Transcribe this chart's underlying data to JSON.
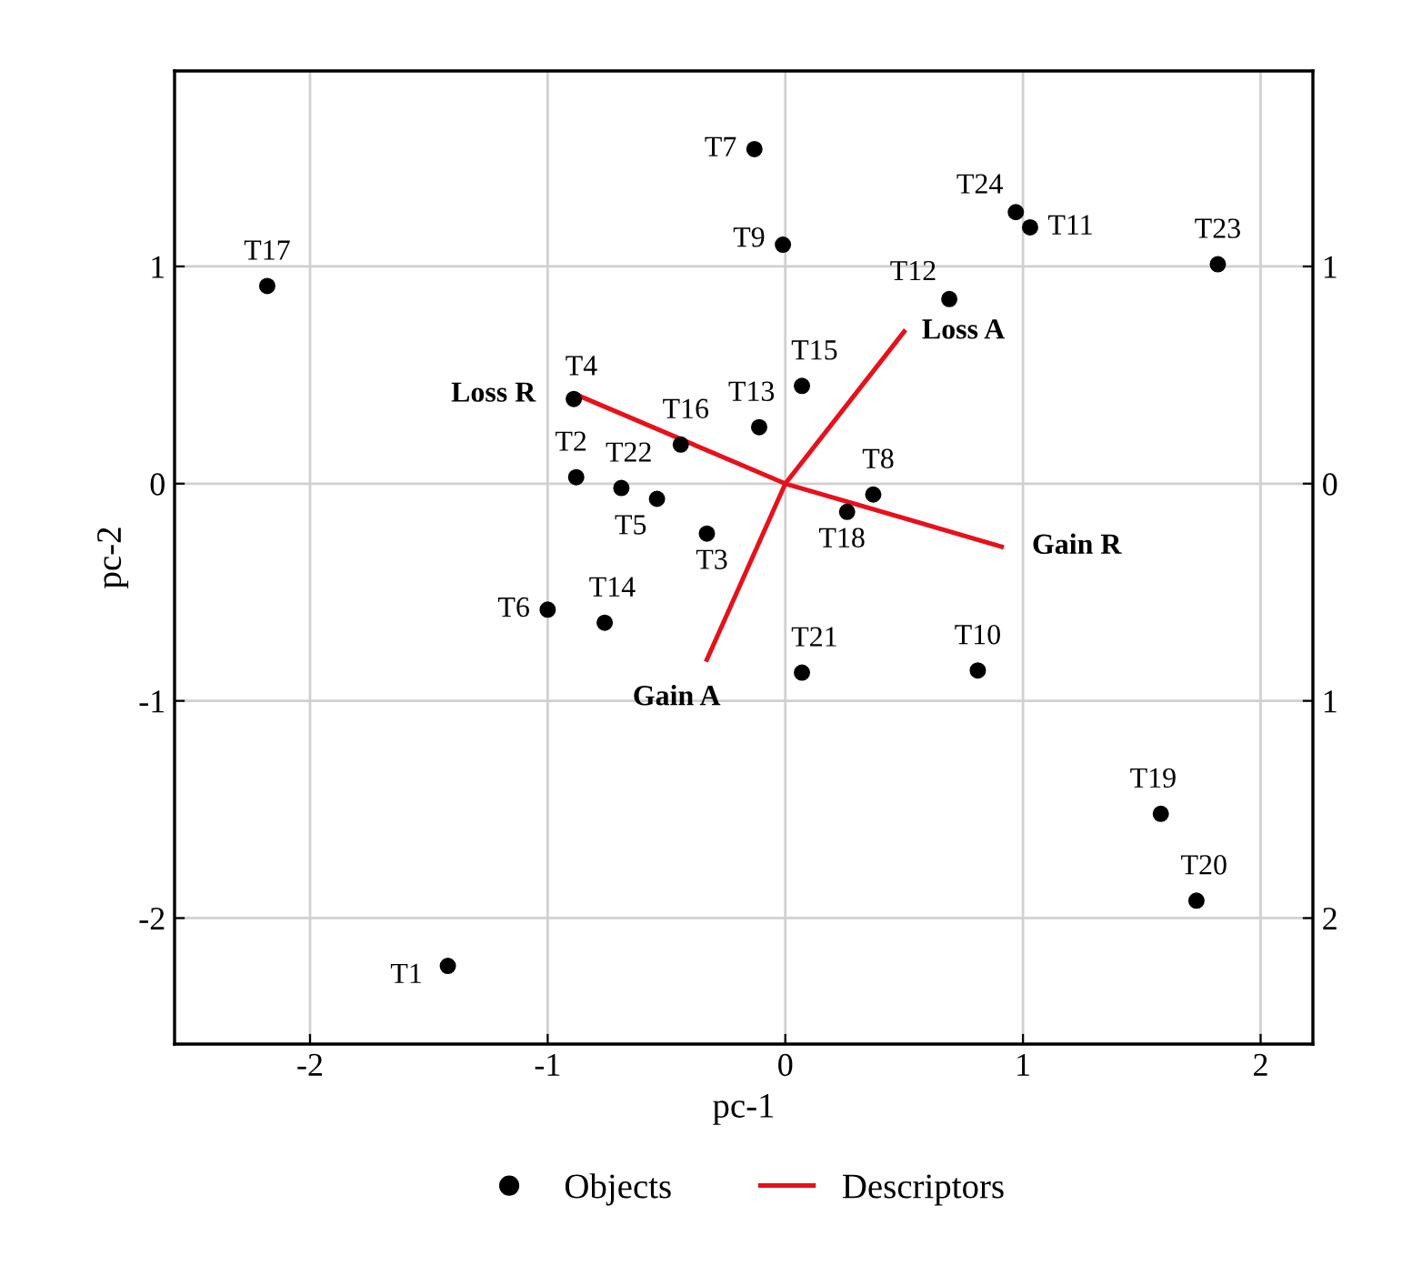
{
  "chart_data": {
    "type": "scatter",
    "xlabel": "pc-1",
    "ylabel": "pc-2",
    "xlim": [
      -2.57,
      2.22
    ],
    "ylim": [
      -2.58,
      1.9
    ],
    "xticks": [
      -2,
      -1,
      0,
      1,
      2
    ],
    "yticks": [
      -2,
      -1,
      0,
      1
    ],
    "y2lim": [
      -2.58,
      1.9
    ],
    "y2ticks": [
      {
        "value": -2,
        "label": "2"
      },
      {
        "value": -1,
        "label": "1"
      },
      0,
      1
    ],
    "grid": true,
    "legend": "bottom",
    "marker": "circle",
    "series": [
      {
        "name": "Objects",
        "color": "#000000",
        "x": [
          -1.42,
          -0.88,
          -0.33,
          -0.89,
          -0.54,
          -1.0,
          -0.13,
          0.37,
          -0.01,
          0.81,
          1.03,
          0.69,
          -0.11,
          -0.76,
          0.07,
          -0.44,
          -2.18,
          0.26,
          1.58,
          1.73,
          0.07,
          -0.69,
          1.82,
          0.97
        ],
        "values": [
          -2.22,
          0.03,
          -0.23,
          0.39,
          -0.07,
          -0.58,
          1.54,
          -0.05,
          1.1,
          -0.86,
          1.18,
          0.85,
          0.26,
          -0.64,
          0.45,
          0.18,
          0.91,
          -0.13,
          -1.52,
          -1.92,
          -0.87,
          -0.02,
          1.01,
          1.25
        ]
      },
      {
        "name": "Descriptors",
        "type": "line",
        "marker": "none",
        "color": "#e8101a",
        "x": [
          0,
          0.5,
          null,
          0,
          -0.88,
          null,
          0,
          0.91,
          null,
          0,
          -0.33
        ],
        "values": [
          0,
          0.7,
          null,
          0,
          0.41,
          null,
          0,
          -0.29,
          null,
          0,
          -0.81
        ]
      }
    ],
    "annotations": [
      {
        "text": "T1",
        "x": -1.42,
        "y": -2.22
      },
      {
        "text": "T2",
        "x": -0.88,
        "y": 0.03
      },
      {
        "text": "T3",
        "x": -0.33,
        "y": -0.23
      },
      {
        "text": "T4",
        "x": -0.89,
        "y": 0.39
      },
      {
        "text": "T5",
        "x": -0.54,
        "y": -0.07
      },
      {
        "text": "T6",
        "x": -1.0,
        "y": -0.58
      },
      {
        "text": "T7",
        "x": -0.13,
        "y": 1.54
      },
      {
        "text": "T8",
        "x": 0.37,
        "y": -0.05
      },
      {
        "text": "T9",
        "x": -0.01,
        "y": 1.1
      },
      {
        "text": "T10",
        "x": 0.81,
        "y": -0.86
      },
      {
        "text": "T11",
        "x": 1.03,
        "y": 1.18
      },
      {
        "text": "T12",
        "x": 0.69,
        "y": 0.85
      },
      {
        "text": "T13",
        "x": -0.11,
        "y": 0.26
      },
      {
        "text": "T14",
        "x": -0.76,
        "y": -0.64
      },
      {
        "text": "T15",
        "x": 0.07,
        "y": 0.45
      },
      {
        "text": "T16",
        "x": -0.44,
        "y": 0.18
      },
      {
        "text": "T17",
        "x": -2.18,
        "y": 0.91
      },
      {
        "text": "T18",
        "x": 0.26,
        "y": -0.13
      },
      {
        "text": "T19",
        "x": 1.58,
        "y": -1.52
      },
      {
        "text": "T20",
        "x": 1.73,
        "y": -1.92
      },
      {
        "text": "T21",
        "x": 0.07,
        "y": -0.87
      },
      {
        "text": "T22",
        "x": -0.69,
        "y": -0.02
      },
      {
        "text": "T23",
        "x": 1.82,
        "y": 1.01
      },
      {
        "text": "T24",
        "x": 0.97,
        "y": 1.25
      },
      {
        "text": "Loss A",
        "x": 0.5,
        "y": 0.7
      },
      {
        "text": "Loss R",
        "x": -0.88,
        "y": 0.41
      },
      {
        "text": "Gain R",
        "x": 0.91,
        "y": -0.29
      },
      {
        "text": "Gain A",
        "x": -0.33,
        "y": -0.81
      }
    ]
  }
}
